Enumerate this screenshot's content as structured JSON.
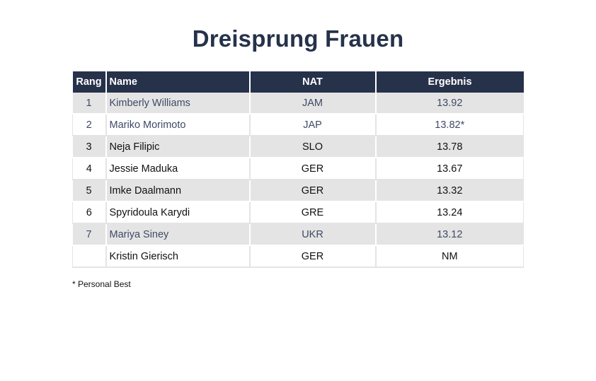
{
  "title": "Dreisprung Frauen",
  "table": {
    "headers": {
      "rank": "Rang",
      "name": "Name",
      "nat": "NAT",
      "result": "Ergebnis"
    },
    "rows": [
      {
        "rank": "1",
        "name": "Kimberly Williams",
        "nat": "JAM",
        "result": "13.92",
        "muted": true
      },
      {
        "rank": "2",
        "name": "Mariko Morimoto",
        "nat": "JAP",
        "result": "13.82*",
        "muted": true
      },
      {
        "rank": "3",
        "name": "Neja Filipic",
        "nat": "SLO",
        "result": "13.78",
        "muted": false
      },
      {
        "rank": "4",
        "name": "Jessie Maduka",
        "nat": "GER",
        "result": "13.67",
        "muted": false
      },
      {
        "rank": "5",
        "name": "Imke Daalmann",
        "nat": "GER",
        "result": "13.32",
        "muted": false
      },
      {
        "rank": "6",
        "name": "Spyridoula Karydi",
        "nat": "GRE",
        "result": "13.24",
        "muted": false
      },
      {
        "rank": "7",
        "name": "Mariya Siney",
        "nat": "UKR",
        "result": "13.12",
        "muted": true
      },
      {
        "rank": "",
        "name": "Kristin Gierisch",
        "nat": "GER",
        "result": "NM",
        "muted": false
      }
    ]
  },
  "footnote": "* Personal Best",
  "colors": {
    "header_bg": "#26324a",
    "stripe": "#e4e4e4"
  }
}
